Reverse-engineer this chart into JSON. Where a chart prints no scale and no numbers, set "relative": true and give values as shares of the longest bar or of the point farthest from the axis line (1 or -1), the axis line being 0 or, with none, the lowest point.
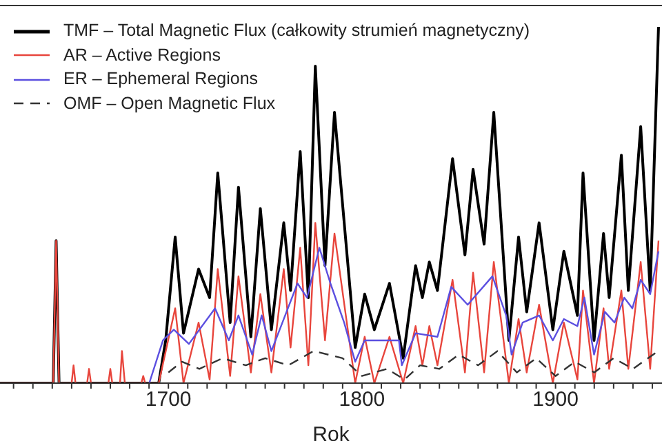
{
  "chart_data": {
    "type": "line",
    "relative": true,
    "xlabel": "Rok",
    "legend": "top left",
    "xlim": [
      1613,
      1955
    ],
    "xticks": [
      {
        "value": 1620,
        "label": null
      },
      {
        "value": 1630,
        "label": null
      },
      {
        "value": 1640,
        "label": null
      },
      {
        "value": 1650,
        "label": null
      },
      {
        "value": 1660,
        "label": null
      },
      {
        "value": 1670,
        "label": null
      },
      {
        "value": 1680,
        "label": null
      },
      {
        "value": 1690,
        "label": null
      },
      1700,
      {
        "value": 1710,
        "label": null
      },
      {
        "value": 1720,
        "label": null
      },
      {
        "value": 1730,
        "label": null
      },
      {
        "value": 1740,
        "label": null
      },
      {
        "value": 1750,
        "label": null
      },
      {
        "value": 1760,
        "label": null
      },
      {
        "value": 1770,
        "label": null
      },
      {
        "value": 1780,
        "label": null
      },
      {
        "value": 1790,
        "label": null
      },
      1800,
      {
        "value": 1810,
        "label": null
      },
      {
        "value": 1820,
        "label": null
      },
      {
        "value": 1830,
        "label": null
      },
      {
        "value": 1840,
        "label": null
      },
      {
        "value": 1850,
        "label": null
      },
      {
        "value": 1860,
        "label": null
      },
      {
        "value": 1870,
        "label": null
      },
      {
        "value": 1880,
        "label": null
      },
      {
        "value": 1890,
        "label": null
      },
      1900,
      {
        "value": 1910,
        "label": null
      },
      {
        "value": 1920,
        "label": null
      },
      {
        "value": 1930,
        "label": null
      },
      {
        "value": 1940,
        "label": null
      },
      {
        "value": 1950,
        "label": null
      }
    ],
    "series": [
      {
        "name": "TMF – Total Magnetic Flux (całkowity strumień magnetyczny)",
        "color": "#000000",
        "line_style": "solid",
        "x": [
          1613,
          1640.5,
          1642,
          1643.5,
          1695,
          1698.6,
          1703.5,
          1707.8,
          1715.6,
          1721.3,
          1725.5,
          1731.9,
          1736.2,
          1742.6,
          1747.5,
          1753.2,
          1759.6,
          1763.1,
          1768.1,
          1772.3,
          1775.9,
          1780.9,
          1785.8,
          1796.5,
          1801.4,
          1806.4,
          1814.2,
          1821.3,
          1827.7,
          1831.2,
          1834.8,
          1839.0,
          1846.8,
          1853.2,
          1857.4,
          1863.1,
          1868.1,
          1875.9,
          1880.9,
          1885.1,
          1891.5,
          1898.6,
          1904.3,
          1911.3,
          1914.2,
          1919.9,
          1924.8,
          1927.7,
          1934.0,
          1937.6,
          1944.0,
          1948.9,
          1953.2
        ],
        "values": [
          0,
          0,
          0.4,
          0,
          0,
          0.12,
          0.41,
          0.14,
          0.32,
          0.24,
          0.59,
          0.17,
          0.55,
          0.13,
          0.49,
          0.15,
          0.45,
          0.26,
          0.65,
          0.24,
          0.89,
          0.33,
          0.76,
          0.1,
          0.25,
          0.15,
          0.28,
          0.07,
          0.33,
          0.24,
          0.34,
          0.26,
          0.63,
          0.36,
          0.6,
          0.39,
          0.76,
          0.12,
          0.41,
          0.2,
          0.45,
          0.15,
          0.37,
          0.19,
          0.59,
          0.12,
          0.42,
          0.24,
          0.64,
          0.26,
          0.72,
          0.26,
          1
        ]
      },
      {
        "name": "AR – Active Regions",
        "color": "#e8453c",
        "line_style": "solid",
        "x": [
          1613,
          1640.5,
          1642,
          1643.5,
          1650,
          1651,
          1652,
          1658,
          1659,
          1660,
          1669,
          1670,
          1671,
          1675,
          1676,
          1677.5,
          1686,
          1687,
          1688,
          1695,
          1703.5,
          1707.8,
          1715.6,
          1721.3,
          1725.5,
          1731.9,
          1736.2,
          1742.6,
          1747.5,
          1753.2,
          1759.6,
          1763.1,
          1768.1,
          1772.3,
          1775.9,
          1780.9,
          1785.8,
          1796.5,
          1801.4,
          1806.4,
          1814.2,
          1821.3,
          1827.7,
          1831.2,
          1834.8,
          1839.0,
          1846.8,
          1853.2,
          1857.4,
          1863.1,
          1868.1,
          1875.9,
          1880.9,
          1885.1,
          1891.5,
          1898.6,
          1904.3,
          1911.3,
          1914.2,
          1919.9,
          1924.8,
          1927.7,
          1934.0,
          1937.6,
          1944.0,
          1948.9,
          1953.2
        ],
        "values": [
          0,
          0,
          0.4,
          0,
          0,
          0.05,
          0,
          0,
          0.04,
          0,
          0,
          0.04,
          0,
          0,
          0.09,
          0,
          0,
          0.02,
          0,
          0,
          0.21,
          0,
          0.17,
          0.01,
          0.32,
          0.02,
          0.3,
          0.03,
          0.25,
          0.03,
          0.32,
          0.1,
          0.38,
          0.05,
          0.45,
          0.12,
          0.42,
          0,
          0.13,
          0,
          0.13,
          0,
          0.16,
          0.05,
          0.16,
          0.05,
          0.29,
          0.03,
          0.31,
          0.03,
          0.34,
          0,
          0.18,
          0.03,
          0.22,
          0,
          0.17,
          0.01,
          0.26,
          0,
          0.21,
          0.04,
          0.26,
          0.04,
          0.34,
          0.04,
          0.4
        ]
      },
      {
        "name": "ER – Ephemeral Regions",
        "color": "#5b4fe0",
        "line_style": "solid",
        "x": [
          1690.1,
          1697.2,
          1702.8,
          1710.6,
          1724.1,
          1731.2,
          1736.2,
          1743.3,
          1748.2,
          1753.2,
          1758.9,
          1766.7,
          1771.6,
          1778.0,
          1783.7,
          1790.8,
          1796.5,
          1801.4,
          1819.1,
          1820.6,
          1827.7,
          1839.0,
          1846.1,
          1854.6,
          1867.4,
          1874.5,
          1877.3,
          1883.0,
          1891.5,
          1898.6,
          1904.3,
          1911.3,
          1914.9,
          1919.9,
          1925.5,
          1930.5,
          1935.5,
          1939.7,
          1944.0,
          1948.9,
          1953.2
        ],
        "values": [
          0,
          0.12,
          0.15,
          0.11,
          0.21,
          0.12,
          0.19,
          0.08,
          0.19,
          0.09,
          0.17,
          0.28,
          0.24,
          0.38,
          0.28,
          0.17,
          0.06,
          0.12,
          0.12,
          0.05,
          0.14,
          0.13,
          0.27,
          0.22,
          0.3,
          0.19,
          0.08,
          0.17,
          0.19,
          0.12,
          0.18,
          0.16,
          0.24,
          0.08,
          0.2,
          0.17,
          0.24,
          0.21,
          0.29,
          0.25,
          0.37
        ]
      },
      {
        "name": "OMF – Open Magnetic Flux",
        "color": "#333333",
        "line_style": "dashed",
        "x": [
          1700,
          1707,
          1716,
          1728,
          1740,
          1750,
          1762,
          1775,
          1790,
          1800,
          1813,
          1822,
          1830,
          1840,
          1850,
          1860,
          1870,
          1880,
          1890,
          1900,
          1910,
          1920,
          1930,
          1940,
          1953
        ],
        "values": [
          0.03,
          0.06,
          0.04,
          0.07,
          0.05,
          0.07,
          0.05,
          0.09,
          0.07,
          0.02,
          0.04,
          0.01,
          0.05,
          0.04,
          0.08,
          0.05,
          0.09,
          0.03,
          0.07,
          0.02,
          0.06,
          0.03,
          0.07,
          0.04,
          0.09
        ]
      }
    ]
  }
}
